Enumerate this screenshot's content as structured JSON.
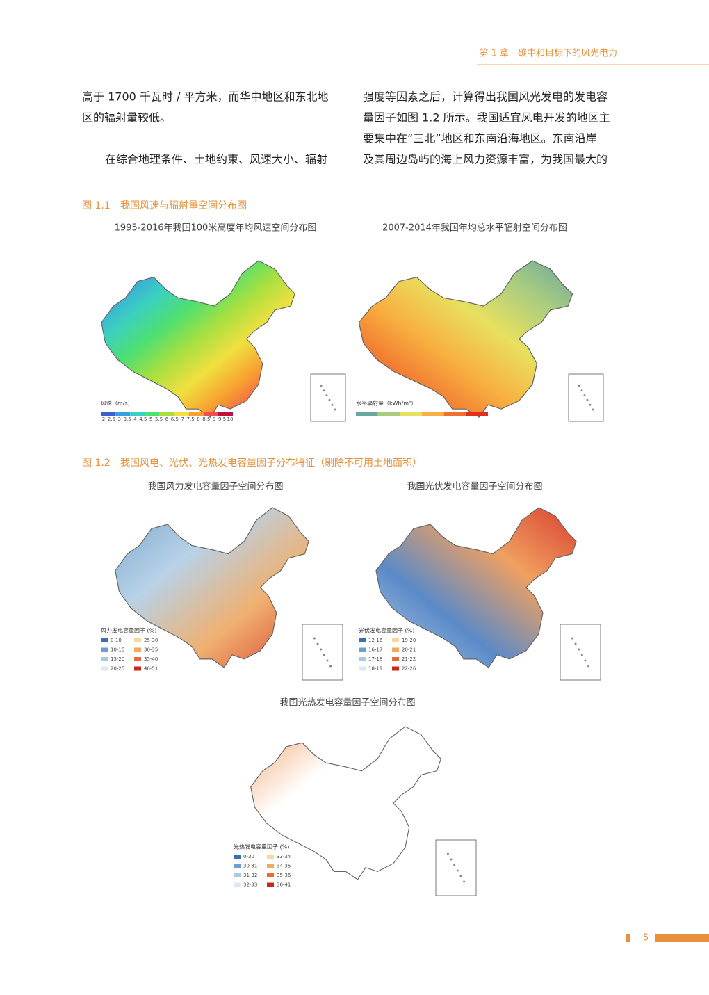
{
  "header": {
    "chapter": "第 1 章　碳中和目标下的风光电力"
  },
  "body": {
    "left_lines": [
      "高于 1700 千瓦时 / 平方米，而华中地区和东北地",
      "区的辐射量较低。",
      "在综合地理条件、土地约束、风速大小、辐射"
    ],
    "right_lines": [
      "强度等因素之后，计算得出我国风光发电的发电容",
      "量因子如图 1.2 所示。我国适宜风电开发的地区主",
      "要集中在“三北”地区和东南沿海地区。东南沿岸",
      "及其周边岛屿的海上风力资源丰富，为我国最大的"
    ]
  },
  "figures": [
    {
      "label": "图 1.1",
      "title": "我国风速与辐射量空间分布图",
      "maps": [
        {
          "title": "1995-2016年我国100米高度年均风速空间分布图",
          "legend_title": "风速（m/s）",
          "scale_ticks": [
            "2",
            "2.5",
            "3",
            "3.5",
            "4",
            "4.5",
            "5",
            "5.5",
            "6",
            "6.5",
            "7",
            "7.5",
            "8",
            "8.5",
            "9",
            "9.5",
            "10"
          ],
          "colors": [
            "#3a5fd0",
            "#39a0e0",
            "#3cd0c0",
            "#4ee070",
            "#a8e040",
            "#f0e040",
            "#f8a030",
            "#f05050",
            "#c01040"
          ]
        },
        {
          "title": "2007-2014年我国年均总水平辐射空间分布图",
          "legend_title": "水平辐射量（kWh/m²）",
          "scale_ticks": [],
          "colors": [
            "#6aa7a0",
            "#a8cc80",
            "#e8e060",
            "#f8b040",
            "#f07030",
            "#e03020"
          ]
        }
      ]
    },
    {
      "label": "图 1.2",
      "title": "我国风电、光伏、光热发电容量因子分布特征（剔除不可用土地面积）",
      "maps": [
        {
          "title": "我国风力发电容量因子空间分布图",
          "legend_title": "风力发电容量因子 (%)",
          "legend": [
            {
              "label": "0-10",
              "color": "#3a6fb0"
            },
            {
              "label": "10-15",
              "color": "#6a9fd0"
            },
            {
              "label": "15-20",
              "color": "#a8c8e4"
            },
            {
              "label": "20-25",
              "color": "#dce9f4"
            },
            {
              "label": "25-30",
              "color": "#f8d8a0"
            },
            {
              "label": "30-35",
              "color": "#f4a860"
            },
            {
              "label": "35-40",
              "color": "#e86a3a"
            },
            {
              "label": "40-51",
              "color": "#c8281e"
            }
          ]
        },
        {
          "title": "我国光伏发电容量因子空间分布图",
          "legend_title": "光伏发电容量因子 (%)",
          "legend": [
            {
              "label": "12-16",
              "color": "#3a6fb0"
            },
            {
              "label": "16-17",
              "color": "#6a9fd0"
            },
            {
              "label": "17-18",
              "color": "#a8c8e4"
            },
            {
              "label": "18-19",
              "color": "#dce9f4"
            },
            {
              "label": "19-20",
              "color": "#f8d8a0"
            },
            {
              "label": "20-21",
              "color": "#f4a860"
            },
            {
              "label": "21-22",
              "color": "#e86a3a"
            },
            {
              "label": "22-26",
              "color": "#c8281e"
            }
          ]
        },
        {
          "title": "我国光热发电容量因子空间分布图",
          "legend_title": "光热发电容量因子 (%)",
          "legend": [
            {
              "label": "0-30",
              "color": "#3a6fb0"
            },
            {
              "label": "30-31",
              "color": "#6a9fd0"
            },
            {
              "label": "31-32",
              "color": "#a8c8e4"
            },
            {
              "label": "32-33",
              "color": "#dce9f4"
            },
            {
              "label": "33-34",
              "color": "#f8d8a0"
            },
            {
              "label": "34-35",
              "color": "#f4a860"
            },
            {
              "label": "35-36",
              "color": "#e86a3a"
            },
            {
              "label": "36-41",
              "color": "#c8281e"
            }
          ]
        }
      ]
    }
  ],
  "footer": {
    "page": "5"
  }
}
